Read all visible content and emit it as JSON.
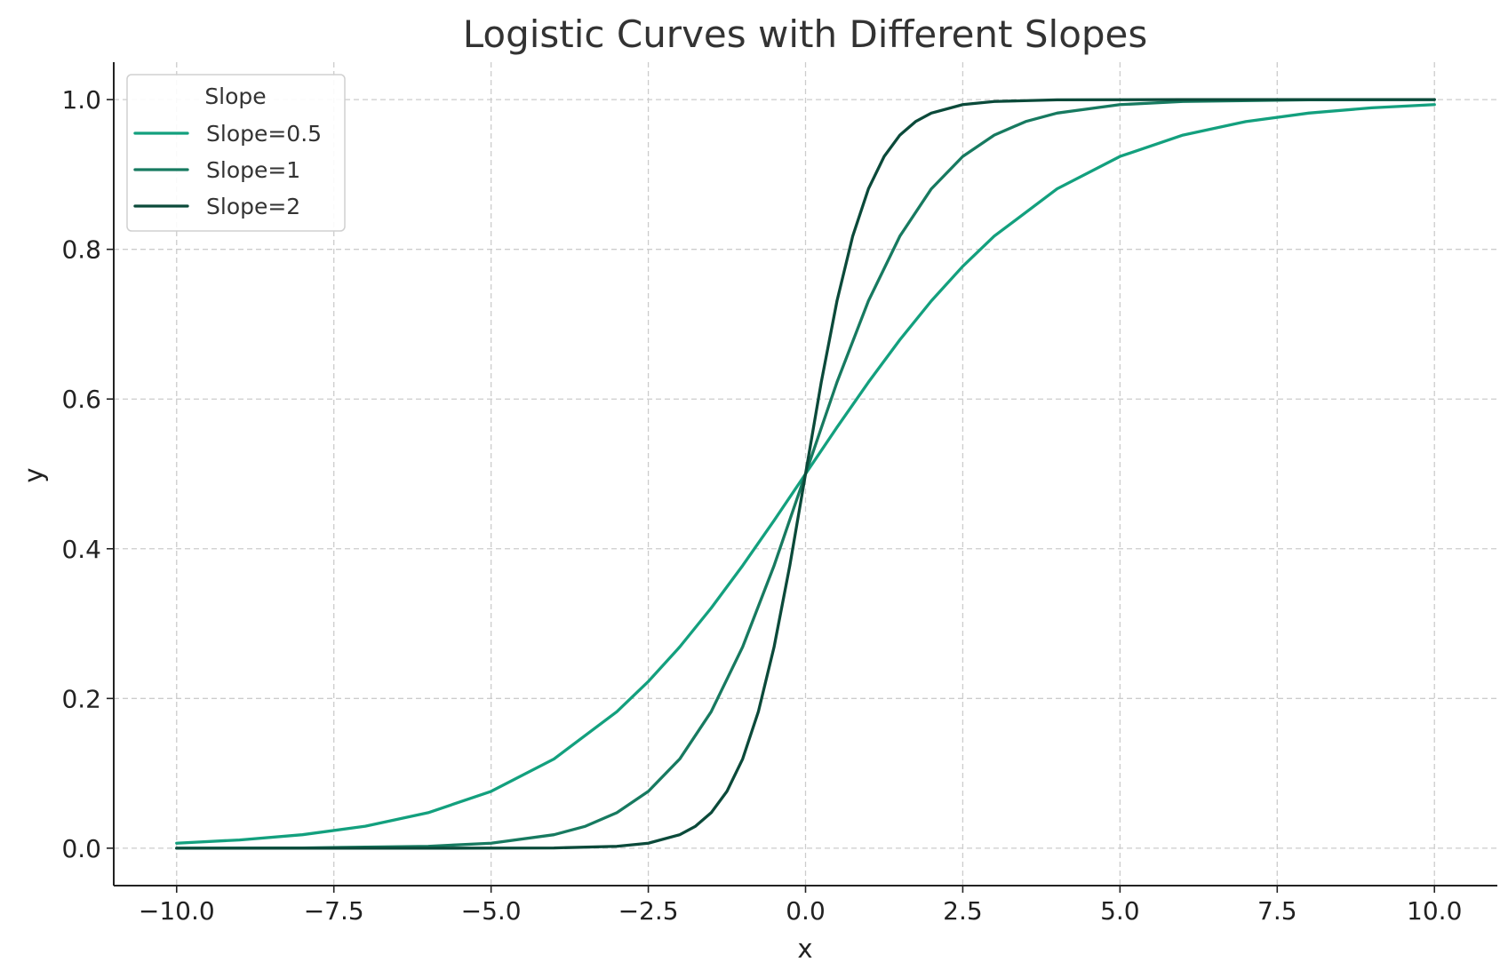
{
  "chart_data": {
    "type": "line",
    "title": "Logistic Curves with Different Slopes",
    "xlabel": "x",
    "ylabel": "y",
    "xlim": [
      -11,
      11
    ],
    "ylim": [
      -0.05,
      1.05
    ],
    "xticks": [
      -10,
      -7.5,
      -5,
      -2.5,
      0,
      2.5,
      5,
      7.5,
      10
    ],
    "xtick_labels": [
      "−10.0",
      "−7.5",
      "−5.0",
      "−2.5",
      "0.0",
      "2.5",
      "5.0",
      "7.5",
      "10.0"
    ],
    "yticks": [
      0,
      0.2,
      0.4,
      0.6,
      0.8,
      1.0
    ],
    "ytick_labels": [
      "0.0",
      "0.2",
      "0.4",
      "0.6",
      "0.8",
      "1.0"
    ],
    "grid": true,
    "legend": {
      "title": "Slope",
      "placement": "top-left"
    },
    "series": [
      {
        "name": "Slope=0.5",
        "color": "#13a07e",
        "x": [
          -10,
          -9,
          -8,
          -7,
          -6,
          -5,
          -4,
          -3,
          -2.5,
          -2,
          -1.5,
          -1,
          -0.5,
          0,
          0.5,
          1,
          1.5,
          2,
          2.5,
          3,
          4,
          5,
          6,
          7,
          8,
          9,
          10
        ],
        "y": [
          0.0067,
          0.011,
          0.018,
          0.0293,
          0.0474,
          0.0759,
          0.1192,
          0.1824,
          0.2227,
          0.2689,
          0.3208,
          0.3775,
          0.4378,
          0.5,
          0.5622,
          0.6225,
          0.6792,
          0.7311,
          0.7773,
          0.8176,
          0.8808,
          0.9241,
          0.9526,
          0.9707,
          0.982,
          0.989,
          0.9933
        ]
      },
      {
        "name": "Slope=1",
        "color": "#177a60",
        "x": [
          -10,
          -8,
          -6,
          -5,
          -4,
          -3.5,
          -3,
          -2.5,
          -2,
          -1.5,
          -1,
          -0.5,
          0,
          0.5,
          1,
          1.5,
          2,
          2.5,
          3,
          3.5,
          4,
          5,
          6,
          8,
          10
        ],
        "y": [
          0.0,
          0.0003,
          0.0025,
          0.0067,
          0.018,
          0.0293,
          0.0474,
          0.0759,
          0.1192,
          0.1824,
          0.2689,
          0.3775,
          0.5,
          0.6225,
          0.7311,
          0.8176,
          0.8808,
          0.9241,
          0.9526,
          0.9707,
          0.982,
          0.9933,
          0.9975,
          0.9997,
          1.0
        ]
      },
      {
        "name": "Slope=2",
        "color": "#0b4a3a",
        "x": [
          -10,
          -6,
          -4,
          -3,
          -2.5,
          -2,
          -1.75,
          -1.5,
          -1.25,
          -1,
          -0.75,
          -0.5,
          -0.25,
          0,
          0.25,
          0.5,
          0.75,
          1,
          1.25,
          1.5,
          1.75,
          2,
          2.5,
          3,
          4,
          6,
          10
        ],
        "y": [
          0.0,
          0.0,
          0.0003,
          0.0025,
          0.0067,
          0.018,
          0.0293,
          0.0474,
          0.0759,
          0.1192,
          0.1824,
          0.2689,
          0.3775,
          0.5,
          0.6225,
          0.7311,
          0.8176,
          0.8808,
          0.9241,
          0.9526,
          0.9707,
          0.982,
          0.9933,
          0.9975,
          0.9997,
          1.0,
          1.0
        ]
      }
    ]
  }
}
